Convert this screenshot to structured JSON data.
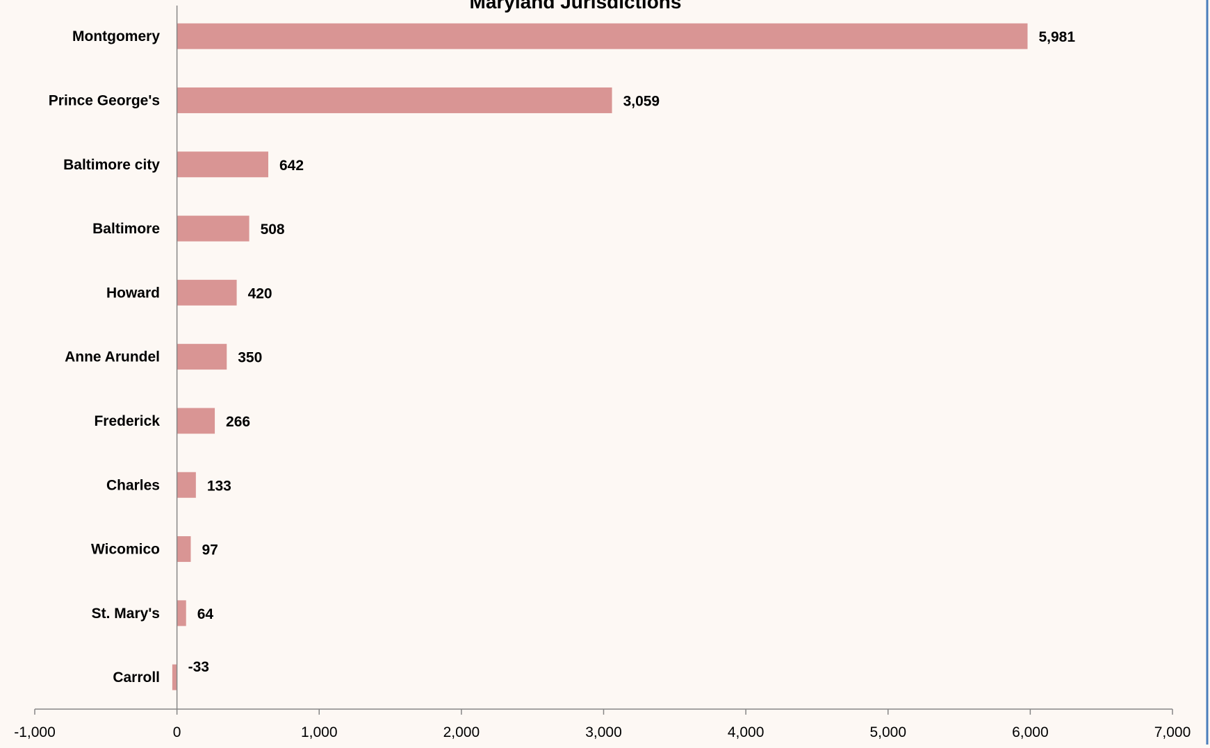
{
  "chart_data": {
    "type": "bar",
    "orientation": "horizontal",
    "title": "Maryland Jurisdictions",
    "xlabel": "",
    "ylabel": "",
    "categories": [
      "Montgomery",
      "Prince George's",
      "Baltimore city",
      "Baltimore",
      "Howard",
      "Anne Arundel",
      "Frederick",
      "Charles",
      "Wicomico",
      "St. Mary's",
      "Carroll"
    ],
    "values": [
      5981,
      3059,
      642,
      508,
      420,
      350,
      266,
      133,
      97,
      64,
      -33
    ],
    "value_labels": [
      "5,981",
      "3,059",
      "642",
      "508",
      "420",
      "350",
      "266",
      "133",
      "97",
      "64",
      "-33"
    ],
    "xlim": [
      -1000,
      7000
    ],
    "xticks": [
      -1000,
      0,
      1000,
      2000,
      3000,
      4000,
      5000,
      6000,
      7000
    ],
    "xtick_labels": [
      "-1,000",
      "0",
      "1,000",
      "2,000",
      "3,000",
      "4,000",
      "5,000",
      "6,000",
      "7,000"
    ],
    "grid": false,
    "legend": "none",
    "colors": {
      "bar": "#d99594",
      "axis": "#868686",
      "background": "#fdf8f4",
      "frame": "#4a7ebb",
      "text": "#000000"
    }
  }
}
